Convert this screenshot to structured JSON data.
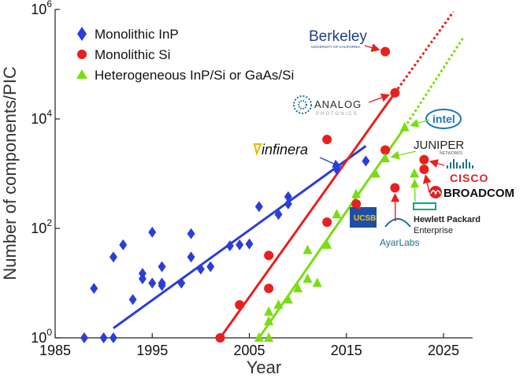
{
  "chart_data": {
    "type": "scatter",
    "xlabel": "Year",
    "ylabel": "Number of components/PIC",
    "xlim": [
      1985,
      2028
    ],
    "ylim_log10": [
      0,
      6
    ],
    "xticks": [
      1985,
      1995,
      2005,
      2015,
      2025
    ],
    "yticks": [
      {
        "base": "10",
        "exp": "0"
      },
      {
        "base": "10",
        "exp": "2"
      },
      {
        "base": "10",
        "exp": "4"
      },
      {
        "base": "10",
        "exp": "6"
      }
    ],
    "series": [
      {
        "name": "Monolithic InP",
        "marker": "diamond",
        "color": "#2b3fd6",
        "points": [
          [
            1988,
            1
          ],
          [
            1989,
            8
          ],
          [
            1990,
            1
          ],
          [
            1991,
            1
          ],
          [
            1991,
            30
          ],
          [
            1992,
            50
          ],
          [
            1993,
            5
          ],
          [
            1994,
            12
          ],
          [
            1994,
            15
          ],
          [
            1995,
            10
          ],
          [
            1995,
            85
          ],
          [
            1996,
            20
          ],
          [
            1996,
            9
          ],
          [
            1996,
            10
          ],
          [
            1998,
            10
          ],
          [
            1999,
            30
          ],
          [
            1999,
            80
          ],
          [
            2000,
            18
          ],
          [
            2001,
            20
          ],
          [
            2003,
            48
          ],
          [
            2004,
            50
          ],
          [
            2005,
            52
          ],
          [
            2006,
            250
          ],
          [
            2008,
            180
          ],
          [
            2009,
            380
          ],
          [
            2009,
            280
          ],
          [
            2014,
            1200
          ],
          [
            2017,
            1700
          ]
        ],
        "trend": [
          [
            1991,
            1.5
          ],
          [
            2017,
            3200
          ]
        ]
      },
      {
        "name": "Monolithic Si",
        "marker": "circle",
        "color": "#e8201e",
        "points": [
          [
            2002,
            1
          ],
          [
            2004,
            4
          ],
          [
            2007,
            8
          ],
          [
            2007,
            32
          ],
          [
            2013,
            4200
          ],
          [
            2013,
            130
          ],
          [
            2016,
            280
          ],
          [
            2019,
            2700
          ],
          [
            2019,
            170000
          ],
          [
            2020,
            30000
          ],
          [
            2020,
            550
          ],
          [
            2023,
            1800
          ],
          [
            2023,
            1200
          ]
        ],
        "trend": [
          [
            2002,
            1
          ],
          [
            2020,
            30000
          ]
        ],
        "trend_extension": [
          [
            2020,
            30000
          ],
          [
            2026,
            900000
          ]
        ]
      },
      {
        "name": "Heterogeneous InP/Si or GaAs/Si",
        "marker": "triangle",
        "color": "#79dd12",
        "points": [
          [
            2006,
            1
          ],
          [
            2007,
            1
          ],
          [
            2007,
            2
          ],
          [
            2007,
            3
          ],
          [
            2008,
            4
          ],
          [
            2009,
            5
          ],
          [
            2010,
            8
          ],
          [
            2011,
            12
          ],
          [
            2011,
            40
          ],
          [
            2012,
            10
          ],
          [
            2013,
            50
          ],
          [
            2014,
            180
          ],
          [
            2016,
            420
          ],
          [
            2018,
            1000
          ],
          [
            2019,
            1900
          ],
          [
            2021,
            7000
          ],
          [
            2022,
            1000
          ]
        ],
        "trend": [
          [
            2006,
            1
          ],
          [
            2021,
            7000
          ]
        ],
        "trend_extension": [
          [
            2021,
            7000
          ],
          [
            2027,
            300000
          ]
        ]
      }
    ],
    "annotations": [
      {
        "name": "berkeley",
        "text": "Berkeley",
        "subtext": "UNIVERSITY OF CALIFORNIA",
        "points_to": [
          2019,
          170000
        ]
      },
      {
        "name": "analog-photonics",
        "text": "ANALOG",
        "subtext": "PHOTONICS",
        "points_to": [
          2020,
          30000
        ]
      },
      {
        "name": "intel",
        "text": "intel",
        "points_to": [
          2021,
          7000
        ]
      },
      {
        "name": "infinera",
        "text": "infinera",
        "points_to": [
          2015,
          1200
        ]
      },
      {
        "name": "juniper",
        "text": "JUNIPER",
        "subtext": "NETWORKS",
        "points_to": [
          2019,
          1900
        ]
      },
      {
        "name": "cisco",
        "text": "CISCO",
        "points_to": [
          2023,
          1800
        ]
      },
      {
        "name": "broadcom",
        "text": "BROADCOM",
        "points_to": [
          2023,
          1200
        ]
      },
      {
        "name": "ucsb",
        "text": "UCSB",
        "points_to": [
          2016,
          280
        ]
      },
      {
        "name": "hpe",
        "text": "Hewlett Packard",
        "subtext": "Enterprise",
        "points_to": [
          2022,
          1000
        ]
      },
      {
        "name": "ayarlabs",
        "text": "AyarLabs",
        "points_to": [
          2020,
          550
        ]
      }
    ]
  },
  "legend": {
    "items": [
      {
        "label": "Monolithic InP"
      },
      {
        "label": "Monolithic Si"
      },
      {
        "label": "Heterogeneous InP/Si or GaAs/Si"
      }
    ]
  }
}
